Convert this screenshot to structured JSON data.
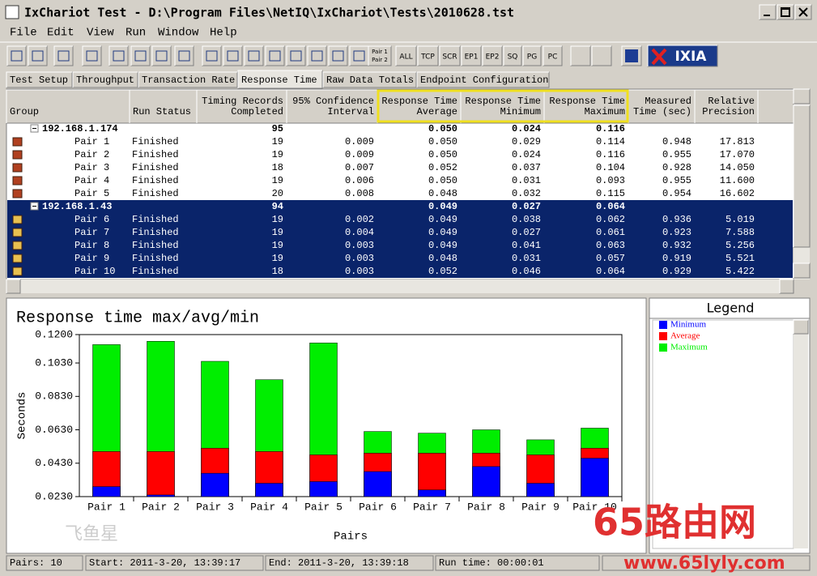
{
  "window": {
    "title": "IxChariot Test - D:\\Program Files\\NetIQ\\IxChariot\\Tests\\2010628.tst"
  },
  "menu": [
    "File",
    "Edit",
    "View",
    "Run",
    "Window",
    "Help"
  ],
  "toolbar": [
    "Pair 1",
    "Pair 2",
    "ALL",
    "TCP",
    "SCR",
    "EP1",
    "EP2",
    "SQ",
    "PG",
    "PC",
    "IXIA"
  ],
  "tabs": [
    "Test Setup",
    "Throughput",
    "Transaction Rate",
    "Response Time",
    "Raw Data Totals",
    "Endpoint Configuration"
  ],
  "table": {
    "columns": [
      [
        "Group"
      ],
      [
        "Run Status"
      ],
      [
        "Timing Records",
        "Completed"
      ],
      [
        "95% Confidence",
        "Interval"
      ],
      [
        "Response Time",
        "Average"
      ],
      [
        "Response Time",
        "Minimum"
      ],
      [
        "Response Time",
        "Maximum"
      ],
      [
        "Measured",
        "Time (sec)"
      ],
      [
        "Relative",
        "Precision"
      ]
    ],
    "groups": [
      {
        "name": "192.168.1.174",
        "records": "95",
        "average": "0.050",
        "minimum": "0.024",
        "maximum": "0.116",
        "rows": [
          [
            "Pair 1",
            "Finished",
            "19",
            "0.009",
            "0.050",
            "0.029",
            "0.114",
            "0.948",
            "17.813"
          ],
          [
            "Pair 2",
            "Finished",
            "19",
            "0.009",
            "0.050",
            "0.024",
            "0.116",
            "0.955",
            "17.070"
          ],
          [
            "Pair 3",
            "Finished",
            "18",
            "0.007",
            "0.052",
            "0.037",
            "0.104",
            "0.928",
            "14.050"
          ],
          [
            "Pair 4",
            "Finished",
            "19",
            "0.006",
            "0.050",
            "0.031",
            "0.093",
            "0.955",
            "11.600"
          ],
          [
            "Pair 5",
            "Finished",
            "20",
            "0.008",
            "0.048",
            "0.032",
            "0.115",
            "0.954",
            "16.602"
          ]
        ]
      },
      {
        "name": "192.168.1.43",
        "records": "94",
        "average": "0.049",
        "minimum": "0.027",
        "maximum": "0.064",
        "rows": [
          [
            "Pair 6",
            "Finished",
            "19",
            "0.002",
            "0.049",
            "0.038",
            "0.062",
            "0.936",
            "5.019"
          ],
          [
            "Pair 7",
            "Finished",
            "19",
            "0.004",
            "0.049",
            "0.027",
            "0.061",
            "0.923",
            "7.588"
          ],
          [
            "Pair 8",
            "Finished",
            "19",
            "0.003",
            "0.049",
            "0.041",
            "0.063",
            "0.932",
            "5.256"
          ],
          [
            "Pair 9",
            "Finished",
            "19",
            "0.003",
            "0.048",
            "0.031",
            "0.057",
            "0.919",
            "5.521"
          ],
          [
            "Pair 10",
            "Finished",
            "18",
            "0.003",
            "0.052",
            "0.046",
            "0.064",
            "0.929",
            "5.422"
          ]
        ]
      }
    ]
  },
  "chart_data": {
    "type": "bar",
    "title": "Response time max/avg/min",
    "x_label": "Pairs",
    "y_label": "Seconds",
    "legend_title": "Legend",
    "categories": [
      "Pair 1",
      "Pair 2",
      "Pair 3",
      "Pair 4",
      "Pair 5",
      "Pair 6",
      "Pair 7",
      "Pair 8",
      "Pair 9",
      "Pair 10"
    ],
    "series": [
      {
        "name": "Minimum",
        "color": "#0000ff",
        "values": [
          0.029,
          0.024,
          0.037,
          0.031,
          0.032,
          0.038,
          0.027,
          0.041,
          0.031,
          0.046
        ]
      },
      {
        "name": "Average",
        "color": "#ff0000",
        "values": [
          0.05,
          0.05,
          0.052,
          0.05,
          0.048,
          0.049,
          0.049,
          0.049,
          0.048,
          0.052
        ]
      },
      {
        "name": "Maximum",
        "color": "#00ee00",
        "values": [
          0.114,
          0.116,
          0.104,
          0.093,
          0.115,
          0.062,
          0.061,
          0.063,
          0.057,
          0.064
        ]
      }
    ],
    "ylim": [
      0.023,
      0.12
    ],
    "yticks": [
      {
        "value": 0.023,
        "label": "0.0230"
      },
      {
        "value": 0.043,
        "label": "0.0430"
      },
      {
        "value": 0.063,
        "label": "0.0630"
      },
      {
        "value": 0.083,
        "label": "0.0830"
      },
      {
        "value": 0.103,
        "label": "0.1030"
      },
      {
        "value": 0.12,
        "label": "0.1200"
      }
    ]
  },
  "status_bar": [
    "Pairs: 10",
    "Start: 2011-3-20, 13:39:17",
    "End: 2011-3-20, 13:39:18",
    "Run time: 00:00:01"
  ],
  "watermark": {
    "logo": "飞鱼星",
    "text": "65路由网",
    "url": "www.65lyly.com"
  }
}
